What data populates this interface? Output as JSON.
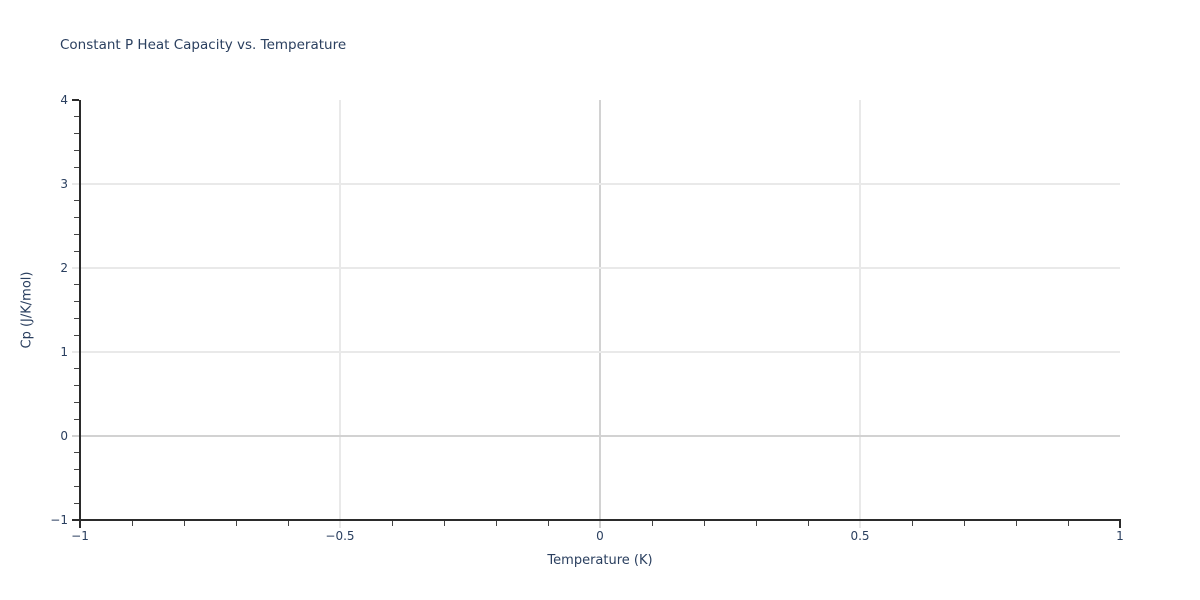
{
  "colors": {
    "background": "#ffffff",
    "font": "#2a3f5f",
    "grid": "#e9e9e9",
    "zeroline": "#d2d2d2",
    "axis_line": "#2b2b2b",
    "minor_tick": "#444444"
  },
  "chart_data": {
    "type": "scatter",
    "title": "Constant P Heat Capacity vs. Temperature",
    "xlabel": "Temperature (K)",
    "ylabel": "Cp (J/K/mol)",
    "xlim": [
      -1,
      1
    ],
    "ylim": [
      -1,
      4
    ],
    "xticks": {
      "values": [
        -1,
        -0.5,
        0,
        0.5,
        1
      ],
      "labels": [
        "−1",
        "−0.5",
        "0",
        "0.5",
        "1"
      ],
      "minor_step": 0.1
    },
    "yticks": {
      "values": [
        -1,
        0,
        1,
        2,
        3,
        4
      ],
      "labels": [
        "−1",
        "0",
        "1",
        "2",
        "3",
        "4"
      ],
      "minor_step": 0.2
    },
    "grid": {
      "x_gridlines": [
        -0.5,
        0,
        0.5
      ],
      "y_gridlines": [
        0,
        1,
        2,
        3
      ],
      "x_zeroline": 0,
      "y_zeroline": 0
    },
    "legend": {
      "visible": false
    },
    "series": []
  }
}
